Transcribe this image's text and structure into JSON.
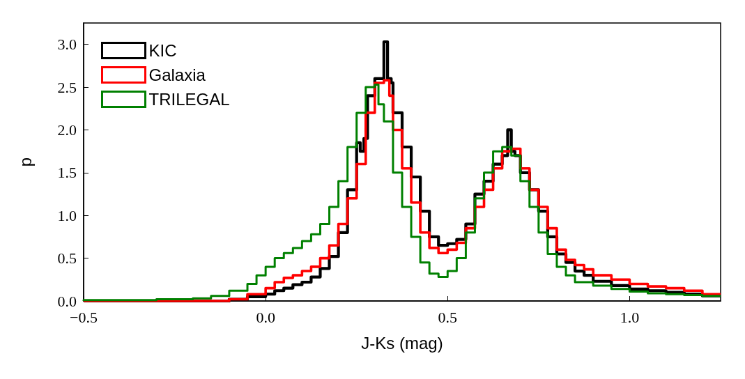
{
  "chart_data": {
    "type": "step",
    "xlabel": "J-Ks (mag)",
    "ylabel": "p",
    "xlim": [
      -0.5,
      1.25
    ],
    "ylim": [
      0,
      3.25
    ],
    "xticks": [
      {
        "value": -0.5,
        "label": "−0.5"
      },
      {
        "value": 0,
        "label": "0.0"
      },
      {
        "value": 0.5,
        "label": "0.5"
      },
      {
        "value": 1,
        "label": "1.0"
      }
    ],
    "yticks": [
      {
        "value": 0,
        "label": "0.0"
      },
      {
        "value": 0.5,
        "label": "0.5"
      },
      {
        "value": 1,
        "label": "1.0"
      },
      {
        "value": 1.5,
        "label": "1.5"
      },
      {
        "value": 2,
        "label": "2.0"
      },
      {
        "value": 2.5,
        "label": "2.5"
      },
      {
        "value": 3,
        "label": "3.0"
      }
    ],
    "legend": "top left",
    "marker": "none",
    "series": [
      {
        "name": "KIC",
        "color": "#000000",
        "x": [
          -0.5,
          -0.1,
          -0.05,
          0,
          0.025,
          0.05,
          0.075,
          0.1,
          0.125,
          0.15,
          0.175,
          0.2,
          0.225,
          0.25,
          0.26,
          0.27,
          0.28,
          0.3,
          0.315,
          0.325,
          0.335,
          0.345,
          0.35,
          0.375,
          0.4,
          0.425,
          0.45,
          0.475,
          0.5,
          0.525,
          0.55,
          0.575,
          0.6,
          0.625,
          0.65,
          0.665,
          0.675,
          0.685,
          0.7,
          0.725,
          0.75,
          0.775,
          0.8,
          0.825,
          0.85,
          0.875,
          0.9,
          0.95,
          1,
          1.05,
          1.1,
          1.15,
          1.2,
          1.25
        ],
        "values": [
          0,
          0,
          0.02,
          0.05,
          0.08,
          0.12,
          0.15,
          0.19,
          0.22,
          0.28,
          0.38,
          0.52,
          0.8,
          1.3,
          1.85,
          1.75,
          1.9,
          2.4,
          2.6,
          2.6,
          3.03,
          2.6,
          2.55,
          2.2,
          1.8,
          1.45,
          1.05,
          0.75,
          0.65,
          0.67,
          0.72,
          0.9,
          1.25,
          1.4,
          1.6,
          1.7,
          2.0,
          1.75,
          1.7,
          1.5,
          1.3,
          1.05,
          0.75,
          0.55,
          0.45,
          0.35,
          0.3,
          0.23,
          0.18,
          0.14,
          0.12,
          0.1,
          0.08,
          0.06
        ]
      },
      {
        "name": "Galaxia",
        "color": "#ff0000",
        "x": [
          -0.5,
          -0.1,
          -0.05,
          0,
          0.025,
          0.05,
          0.075,
          0.1,
          0.125,
          0.15,
          0.175,
          0.2,
          0.225,
          0.25,
          0.275,
          0.3,
          0.325,
          0.34,
          0.35,
          0.375,
          0.4,
          0.425,
          0.45,
          0.475,
          0.5,
          0.525,
          0.55,
          0.575,
          0.6,
          0.625,
          0.65,
          0.675,
          0.7,
          0.725,
          0.75,
          0.775,
          0.8,
          0.825,
          0.85,
          0.875,
          0.9,
          0.95,
          1,
          1.05,
          1.1,
          1.15,
          1.2,
          1.25
        ],
        "values": [
          0,
          0,
          0.02,
          0.08,
          0.15,
          0.22,
          0.27,
          0.3,
          0.35,
          0.4,
          0.5,
          0.65,
          0.9,
          1.2,
          1.6,
          2.2,
          2.55,
          2.58,
          2.4,
          2.0,
          1.55,
          1.15,
          0.8,
          0.62,
          0.56,
          0.6,
          0.68,
          0.85,
          1.1,
          1.3,
          1.55,
          1.75,
          1.78,
          1.55,
          1.3,
          1.1,
          0.85,
          0.6,
          0.48,
          0.42,
          0.37,
          0.3,
          0.25,
          0.2,
          0.17,
          0.15,
          0.12,
          0.08
        ]
      },
      {
        "name": "TRILEGAL",
        "color": "#008000",
        "x": [
          -0.5,
          -0.3,
          -0.2,
          -0.15,
          -0.1,
          -0.05,
          -0.025,
          0,
          0.025,
          0.05,
          0.075,
          0.1,
          0.125,
          0.15,
          0.175,
          0.2,
          0.225,
          0.25,
          0.275,
          0.3,
          0.31,
          0.325,
          0.35,
          0.375,
          0.4,
          0.425,
          0.45,
          0.475,
          0.5,
          0.525,
          0.55,
          0.575,
          0.6,
          0.625,
          0.65,
          0.675,
          0.7,
          0.725,
          0.75,
          0.775,
          0.8,
          0.825,
          0.85,
          0.9,
          0.95,
          1,
          1.05,
          1.1,
          1.15,
          1.2,
          1.25
        ],
        "values": [
          0,
          0.01,
          0.02,
          0.03,
          0.06,
          0.12,
          0.2,
          0.3,
          0.4,
          0.5,
          0.56,
          0.62,
          0.7,
          0.78,
          0.9,
          1.1,
          1.4,
          1.8,
          2.2,
          2.5,
          2.53,
          2.3,
          2.1,
          1.5,
          1.1,
          0.75,
          0.45,
          0.32,
          0.28,
          0.35,
          0.5,
          0.8,
          1.2,
          1.5,
          1.75,
          1.8,
          1.7,
          1.4,
          1.1,
          0.8,
          0.55,
          0.4,
          0.3,
          0.22,
          0.18,
          0.14,
          0.11,
          0.09,
          0.08,
          0.07,
          0.06
        ]
      }
    ]
  }
}
